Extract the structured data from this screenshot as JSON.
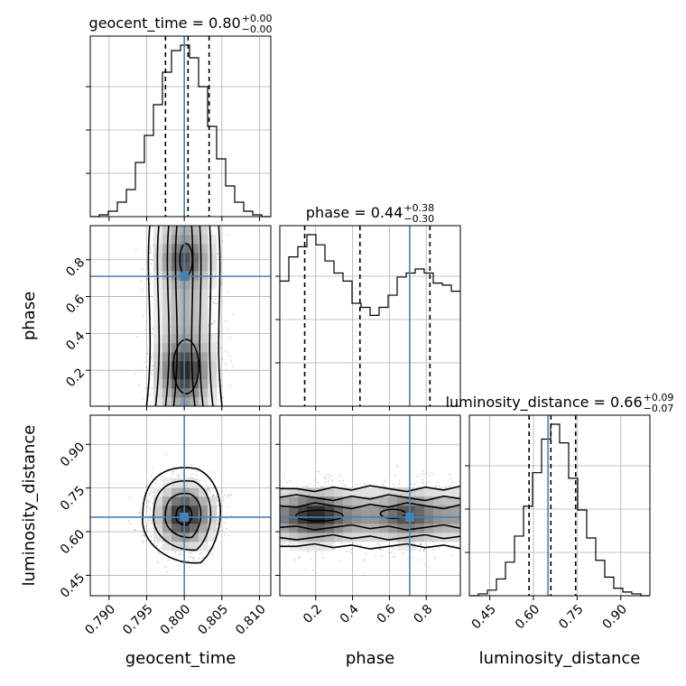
{
  "chart_data": {
    "type": "corner",
    "parameters": [
      "geocent_time",
      "phase",
      "luminosity_distance"
    ],
    "truths": {
      "geocent_time": 0.8,
      "phase": 0.71,
      "luminosity_distance": 0.65
    },
    "titles": [
      {
        "param": "geocent_time",
        "prefix": "geocent_time = 0.80",
        "plus": "+0.00",
        "minus": "−0.00"
      },
      {
        "param": "phase",
        "prefix": "phase = 0.44",
        "plus": "+0.38",
        "minus": "−0.30"
      },
      {
        "param": "luminosity_distance",
        "prefix": "luminosity_distance = 0.66",
        "plus": "+0.09",
        "minus": "−0.07"
      }
    ],
    "axis_labels": {
      "x": [
        "geocent_time",
        "phase",
        "luminosity_distance"
      ],
      "y": [
        "phase",
        "luminosity_distance"
      ]
    },
    "ranges": {
      "geocent_time": [
        0.7875,
        0.8115
      ],
      "phase": [
        0.005,
        0.985
      ],
      "luminosity_distance": [
        0.38,
        1.0
      ]
    },
    "ticks": {
      "geocent_time": [
        "0.790",
        "0.795",
        "0.800",
        "0.805",
        "0.810"
      ],
      "phase": [
        "0.2",
        "0.4",
        "0.6",
        "0.8"
      ],
      "luminosity_distance": [
        "0.45",
        "0.60",
        "0.75",
        "0.90"
      ]
    },
    "quantiles": {
      "geocent_time": [
        0.7975,
        0.8005,
        0.8033
      ],
      "phase": [
        0.14,
        0.44,
        0.82
      ],
      "luminosity_distance": [
        0.585,
        0.66,
        0.745
      ]
    },
    "histograms": {
      "geocent_time": {
        "edges": [
          0.7875,
          0.7887,
          0.7899,
          0.7911,
          0.7923,
          0.7935,
          0.7947,
          0.7959,
          0.7971,
          0.7983,
          0.7995,
          0.8007,
          0.8019,
          0.8031,
          0.8043,
          0.8055,
          0.8067,
          0.8079,
          0.8091,
          0.8103,
          0.8115
        ],
        "counts": [
          0,
          1,
          3,
          8,
          15,
          30,
          45,
          62,
          80,
          92,
          95,
          88,
          72,
          50,
          32,
          17,
          8,
          3,
          1,
          0
        ]
      },
      "phase": {
        "edges": [
          0.005,
          0.054,
          0.103,
          0.152,
          0.201,
          0.25,
          0.299,
          0.348,
          0.397,
          0.446,
          0.495,
          0.544,
          0.593,
          0.642,
          0.691,
          0.74,
          0.789,
          0.838,
          0.887,
          0.936,
          0.985
        ],
        "counts": [
          62,
          74,
          79,
          85,
          80,
          72,
          66,
          62,
          51,
          49,
          45,
          49,
          55,
          64,
          66,
          68,
          66,
          61,
          60,
          57
        ]
      },
      "luminosity_distance": {
        "edges": [
          0.38,
          0.411,
          0.442,
          0.473,
          0.504,
          0.535,
          0.566,
          0.597,
          0.628,
          0.659,
          0.69,
          0.721,
          0.752,
          0.783,
          0.814,
          0.845,
          0.876,
          0.907,
          0.938,
          0.969,
          1.0
        ],
        "counts": [
          0,
          1,
          3,
          9,
          18,
          32,
          48,
          66,
          84,
          92,
          82,
          63,
          46,
          31,
          19,
          10,
          4,
          2,
          1,
          0
        ]
      }
    },
    "levels": [
      "0.118",
      "0.393",
      "0.675",
      "0.864"
    ],
    "grid": true
  }
}
